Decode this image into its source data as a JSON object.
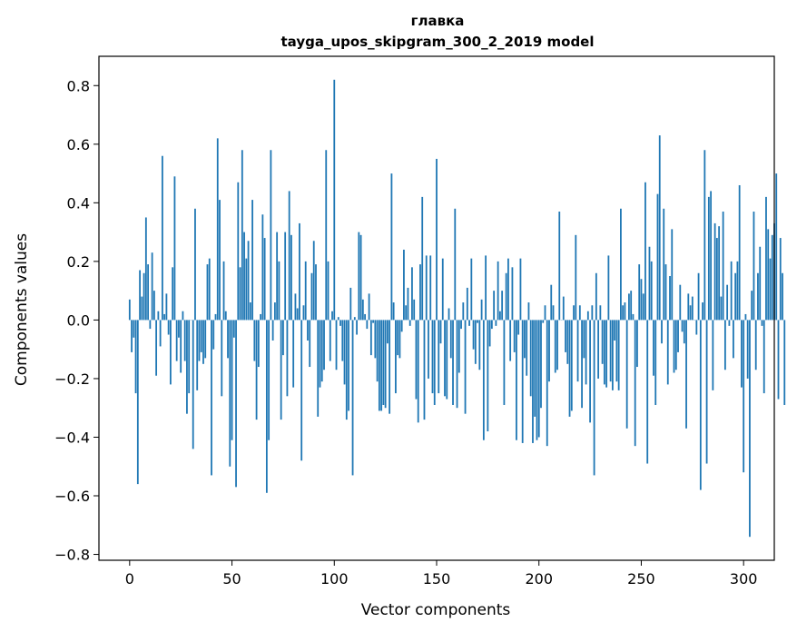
{
  "chart_data": {
    "type": "bar",
    "title_line1": "главка",
    "title_line2": "tayga_upos_skipgram_300_2_2019 model",
    "xlabel": "Vector components",
    "ylabel": "Components values",
    "xlim": [
      -15,
      315
    ],
    "ylim": [
      -0.82,
      0.9
    ],
    "xticks": [
      0,
      50,
      100,
      150,
      200,
      250,
      300
    ],
    "xtick_labels": [
      "0",
      "50",
      "100",
      "150",
      "200",
      "250",
      "300"
    ],
    "yticks": [
      -0.8,
      -0.6,
      -0.4,
      -0.2,
      0.0,
      0.2,
      0.4,
      0.6,
      0.8
    ],
    "ytick_labels": [
      "−0.8",
      "−0.6",
      "−0.4",
      "−0.2",
      "0.0",
      "0.2",
      "0.4",
      "0.6",
      "0.8"
    ],
    "bar_color": "#1f77b4",
    "values": [
      0.07,
      -0.11,
      -0.06,
      -0.25,
      -0.56,
      0.17,
      0.08,
      0.16,
      0.35,
      0.19,
      -0.03,
      0.23,
      0.1,
      -0.19,
      0.03,
      -0.09,
      0.56,
      0.02,
      0.09,
      -0.05,
      -0.22,
      0.18,
      0.49,
      -0.14,
      -0.06,
      -0.18,
      0.03,
      -0.14,
      -0.32,
      -0.25,
      0.0,
      -0.44,
      0.38,
      -0.24,
      -0.14,
      -0.11,
      -0.15,
      -0.13,
      0.19,
      0.21,
      -0.53,
      -0.1,
      0.02,
      0.62,
      0.41,
      -0.26,
      0.2,
      0.03,
      -0.13,
      -0.5,
      -0.41,
      -0.06,
      -0.57,
      0.47,
      0.18,
      0.58,
      0.3,
      0.21,
      0.27,
      0.06,
      0.41,
      -0.14,
      -0.34,
      -0.16,
      0.02,
      0.36,
      0.28,
      -0.59,
      -0.41,
      0.58,
      -0.07,
      0.06,
      0.3,
      0.2,
      -0.34,
      -0.12,
      0.3,
      -0.26,
      0.44,
      0.29,
      -0.23,
      0.09,
      0.04,
      0.33,
      -0.48,
      0.05,
      0.2,
      -0.07,
      -0.16,
      0.16,
      0.27,
      0.19,
      -0.33,
      -0.23,
      -0.21,
      -0.17,
      0.58,
      0.2,
      -0.14,
      0.03,
      0.82,
      -0.17,
      0.01,
      -0.02,
      -0.14,
      -0.22,
      -0.34,
      -0.31,
      0.11,
      -0.53,
      0.01,
      -0.05,
      0.3,
      0.29,
      0.07,
      0.02,
      -0.03,
      0.09,
      -0.12,
      -0.01,
      -0.13,
      -0.21,
      -0.31,
      -0.31,
      -0.29,
      -0.3,
      -0.08,
      -0.32,
      0.5,
      0.06,
      -0.25,
      -0.12,
      -0.13,
      -0.04,
      0.24,
      0.05,
      0.11,
      -0.02,
      0.18,
      0.07,
      -0.27,
      -0.35,
      0.19,
      0.42,
      -0.34,
      0.22,
      -0.2,
      0.22,
      -0.25,
      -0.29,
      0.55,
      -0.25,
      -0.08,
      0.21,
      -0.26,
      -0.27,
      0.04,
      -0.13,
      -0.29,
      0.38,
      -0.3,
      -0.18,
      -0.03,
      0.06,
      -0.32,
      0.11,
      -0.02,
      0.21,
      -0.1,
      -0.15,
      -0.01,
      -0.17,
      0.07,
      -0.41,
      0.22,
      -0.38,
      -0.09,
      -0.03,
      0.1,
      -0.02,
      0.2,
      0.03,
      0.1,
      -0.29,
      0.16,
      0.21,
      -0.14,
      0.18,
      -0.11,
      -0.41,
      -0.05,
      0.21,
      -0.42,
      -0.13,
      -0.19,
      0.06,
      -0.26,
      -0.42,
      -0.33,
      -0.41,
      -0.4,
      -0.3,
      -0.01,
      0.05,
      -0.43,
      -0.21,
      0.12,
      0.05,
      -0.18,
      -0.17,
      0.37,
      0.0,
      0.08,
      -0.11,
      -0.15,
      -0.33,
      -0.31,
      0.05,
      0.29,
      -0.21,
      0.05,
      -0.3,
      -0.13,
      -0.22,
      0.03,
      -0.35,
      0.05,
      -0.53,
      0.16,
      -0.2,
      0.05,
      -0.15,
      -0.22,
      -0.23,
      0.22,
      -0.21,
      -0.24,
      -0.07,
      -0.21,
      -0.24,
      0.38,
      0.05,
      0.06,
      -0.37,
      0.09,
      0.1,
      0.02,
      -0.43,
      -0.16,
      0.19,
      0.14,
      0.09,
      0.47,
      -0.49,
      0.25,
      0.2,
      -0.19,
      -0.29,
      0.43,
      0.63,
      -0.08,
      0.38,
      0.19,
      -0.22,
      0.15,
      0.31,
      -0.18,
      -0.17,
      -0.11,
      0.12,
      -0.04,
      -0.08,
      -0.37,
      0.09,
      0.05,
      0.08,
      0.0,
      -0.05,
      0.16,
      -0.58,
      0.06,
      0.58,
      -0.49,
      0.42,
      0.44,
      -0.24,
      0.33,
      0.28,
      0.32,
      0.08,
      0.37,
      -0.17,
      0.12,
      -0.02,
      0.2,
      -0.13,
      0.16,
      0.2,
      0.46,
      -0.23,
      -0.52,
      0.02,
      -0.2,
      -0.74,
      0.1,
      0.37,
      -0.17,
      0.16,
      0.25,
      -0.02,
      -0.25,
      0.42,
      0.31,
      0.21,
      0.29,
      0.33,
      0.5,
      -0.27,
      0.28,
      0.16,
      -0.29
    ]
  }
}
